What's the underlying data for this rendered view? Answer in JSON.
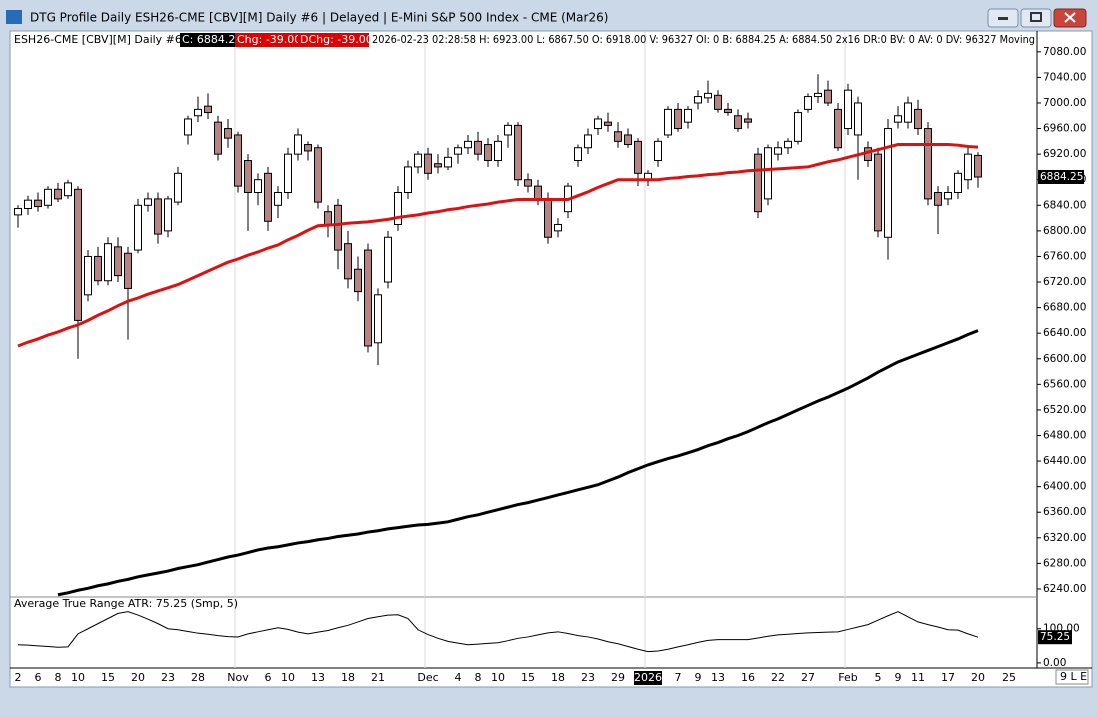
{
  "window": {
    "title": "DTG Profile Daily ESH26-CME [CBV][M]  Daily #6 | Delayed | E-Mini S&P 500 Index - CME (Mar26)",
    "corner": "9 L E"
  },
  "info": {
    "symbol": "ESH26-CME [CBV][M]  Daily #6",
    "close": "C: 6884.25",
    "chg": "Chg: -39.00",
    "dchg": "DChg: -39.00",
    "details": "2026-02-23 02:28:58 H: 6923.00 L: 6867.50 O: 6918.00 V: 96327 OI: 0 B: 6884.25 A: 6884.50 2x16 DR:0 BV: 0 AV: 0 DV: 96327 Moving"
  },
  "chart_data": [
    {
      "type": "candlestick",
      "up_color": "#ffffff",
      "down_color": "#b78484",
      "categories": [
        "2",
        null,
        "6",
        null,
        "8",
        null,
        "10",
        null,
        null,
        "15",
        null,
        null,
        "20",
        null,
        null,
        "23",
        null,
        null,
        "28",
        null,
        null,
        null,
        "Nov",
        null,
        null,
        "6",
        null,
        "10",
        null,
        null,
        "13",
        null,
        null,
        "18",
        null,
        null,
        "21",
        null,
        null,
        null,
        null,
        "Dec",
        null,
        null,
        "4",
        null,
        "8",
        null,
        "10",
        null,
        null,
        "15",
        null,
        null,
        "18",
        null,
        null,
        "23",
        null,
        null,
        "29",
        null,
        null,
        "2026",
        null,
        null,
        "7",
        null,
        "9",
        null,
        "13",
        null,
        null,
        "16",
        null,
        null,
        "22",
        null,
        null,
        "27",
        null,
        null,
        null,
        "Feb",
        null,
        null,
        "5",
        null,
        "9",
        null,
        "11",
        null,
        null,
        "17",
        null,
        null,
        "20"
      ],
      "extra_label": "25",
      "candles": [
        [
          6825,
          6840,
          6805,
          6835
        ],
        [
          6835,
          6855,
          6825,
          6848
        ],
        [
          6848,
          6860,
          6830,
          6838
        ],
        [
          6840,
          6870,
          6835,
          6865
        ],
        [
          6865,
          6875,
          6845,
          6850
        ],
        [
          6855,
          6880,
          6850,
          6875
        ],
        [
          6865,
          6870,
          6600,
          6660
        ],
        [
          6700,
          6770,
          6690,
          6760
        ],
        [
          6760,
          6775,
          6715,
          6722
        ],
        [
          6722,
          6790,
          6715,
          6780
        ],
        [
          6775,
          6790,
          6720,
          6730
        ],
        [
          6765,
          6775,
          6630,
          6710
        ],
        [
          6770,
          6850,
          6765,
          6840
        ],
        [
          6840,
          6860,
          6830,
          6850
        ],
        [
          6850,
          6860,
          6780,
          6795
        ],
        [
          6800,
          6855,
          6790,
          6850
        ],
        [
          6845,
          6900,
          6840,
          6890
        ],
        [
          6950,
          6980,
          6935,
          6975
        ],
        [
          6980,
          7010,
          6970,
          6990
        ],
        [
          6995,
          7015,
          6975,
          6985
        ],
        [
          6970,
          6980,
          6910,
          6920
        ],
        [
          6960,
          6975,
          6930,
          6945
        ],
        [
          6950,
          6955,
          6860,
          6870
        ],
        [
          6910,
          6920,
          6800,
          6860
        ],
        [
          6860,
          6890,
          6840,
          6880
        ],
        [
          6890,
          6900,
          6800,
          6815
        ],
        [
          6840,
          6870,
          6820,
          6860
        ],
        [
          6860,
          6930,
          6850,
          6920
        ],
        [
          6920,
          6960,
          6910,
          6950
        ],
        [
          6935,
          6940,
          6910,
          6925
        ],
        [
          6930,
          6935,
          6835,
          6845
        ],
        [
          6830,
          6840,
          6790,
          6810
        ],
        [
          6840,
          6850,
          6740,
          6770
        ],
        [
          6780,
          6800,
          6710,
          6725
        ],
        [
          6740,
          6760,
          6690,
          6705
        ],
        [
          6770,
          6780,
          6610,
          6620
        ],
        [
          6625,
          6710,
          6590,
          6700
        ],
        [
          6720,
          6800,
          6710,
          6790
        ],
        [
          6810,
          6870,
          6800,
          6860
        ],
        [
          6860,
          6910,
          6850,
          6900
        ],
        [
          6900,
          6925,
          6890,
          6920
        ],
        [
          6920,
          6930,
          6880,
          6890
        ],
        [
          6905,
          6920,
          6890,
          6900
        ],
        [
          6900,
          6930,
          6895,
          6915
        ],
        [
          6920,
          6935,
          6905,
          6930
        ],
        [
          6930,
          6950,
          6920,
          6940
        ],
        [
          6940,
          6955,
          6910,
          6920
        ],
        [
          6935,
          6945,
          6900,
          6910
        ],
        [
          6910,
          6950,
          6900,
          6940
        ],
        [
          6950,
          6970,
          6930,
          6965
        ],
        [
          6965,
          6970,
          6870,
          6880
        ],
        [
          6880,
          6890,
          6860,
          6870
        ],
        [
          6870,
          6880,
          6840,
          6850
        ],
        [
          6850,
          6860,
          6780,
          6790
        ],
        [
          6800,
          6820,
          6790,
          6810
        ],
        [
          6830,
          6875,
          6820,
          6870
        ],
        [
          6910,
          6935,
          6900,
          6930
        ],
        [
          6930,
          6960,
          6920,
          6950
        ],
        [
          6960,
          6980,
          6950,
          6975
        ],
        [
          6970,
          6985,
          6955,
          6965
        ],
        [
          6955,
          6970,
          6930,
          6940
        ],
        [
          6950,
          6960,
          6930,
          6935
        ],
        [
          6940,
          6945,
          6870,
          6890
        ],
        [
          6880,
          6895,
          6870,
          6890
        ],
        [
          6910,
          6945,
          6900,
          6940
        ],
        [
          6950,
          6995,
          6945,
          6990
        ],
        [
          6990,
          7000,
          6955,
          6960
        ],
        [
          6970,
          6995,
          6960,
          6990
        ],
        [
          7000,
          7020,
          6990,
          7010
        ],
        [
          7008,
          7035,
          7000,
          7015
        ],
        [
          7012,
          7020,
          6985,
          6990
        ],
        [
          6990,
          7000,
          6980,
          6985
        ],
        [
          6980,
          6990,
          6955,
          6960
        ],
        [
          6975,
          6985,
          6960,
          6970
        ],
        [
          6920,
          6930,
          6820,
          6830
        ],
        [
          6850,
          6935,
          6840,
          6930
        ],
        [
          6920,
          6940,
          6910,
          6930
        ],
        [
          6930,
          6945,
          6920,
          6940
        ],
        [
          6940,
          6990,
          6935,
          6985
        ],
        [
          6990,
          7015,
          6985,
          7010
        ],
        [
          7010,
          7045,
          7000,
          7015
        ],
        [
          7020,
          7035,
          6995,
          7000
        ],
        [
          6990,
          7000,
          6925,
          6930
        ],
        [
          6960,
          7030,
          6950,
          7020
        ],
        [
          6950,
          7010,
          6880,
          7000
        ],
        [
          6930,
          6940,
          6900,
          6910
        ],
        [
          6920,
          6930,
          6790,
          6800
        ],
        [
          6790,
          6975,
          6755,
          6960
        ],
        [
          6970,
          6995,
          6960,
          6980
        ],
        [
          6970,
          7010,
          6960,
          7000
        ],
        [
          6990,
          7005,
          6950,
          6960
        ],
        [
          6960,
          6970,
          6840,
          6850
        ],
        [
          6860,
          6870,
          6795,
          6840
        ],
        [
          6850,
          6870,
          6840,
          6860
        ],
        [
          6860,
          6895,
          6850,
          6890
        ],
        [
          6880,
          6930,
          6865,
          6920
        ],
        [
          6918,
          6923,
          6867.5,
          6884.25
        ]
      ],
      "series": [
        {
          "color": "#e01010",
          "values": [
            6620,
            6626,
            6631,
            6637,
            6642,
            6648,
            6653,
            6660,
            6668,
            6675,
            6683,
            6690,
            6695,
            6701,
            6706,
            6711,
            6716,
            6723,
            6730,
            6737,
            6744,
            6751,
            6756,
            6762,
            6767,
            6773,
            6778,
            6786,
            6793,
            6801,
            6808,
            6809,
            6810,
            6812,
            6813,
            6814,
            6816,
            6818,
            6821,
            6823,
            6825,
            6828,
            6830,
            6833,
            6835,
            6838,
            6840,
            6842,
            6845,
            6847,
            6849,
            6849,
            6849,
            6849,
            6849,
            6849,
            6855,
            6861,
            6868,
            6874,
            6880,
            6880,
            6880,
            6880,
            6880,
            6882,
            6883,
            6885,
            6886,
            6888,
            6889,
            6891,
            6892,
            6894,
            6895,
            6896,
            6897,
            6898,
            6899,
            6900,
            6904,
            6908,
            6911,
            6915,
            6919,
            6923,
            6927,
            6931,
            6935,
            6935,
            6935,
            6935,
            6935,
            6935,
            6934,
            6932,
            6931
          ]
        },
        {
          "color": "#000000",
          "values": [
            null,
            null,
            null,
            null,
            6231,
            6234,
            6238,
            6241,
            6245,
            6248,
            6252,
            6255,
            6259,
            6262,
            6265,
            6268,
            6272,
            6275,
            6278,
            6282,
            6286,
            6290,
            6293,
            6297,
            6301,
            6304,
            6306,
            6309,
            6312,
            6314,
            6317,
            6319,
            6322,
            6324,
            6326,
            6329,
            6331,
            6334,
            6336,
            6338,
            6340,
            6341,
            6343,
            6345,
            6349,
            6353,
            6356,
            6360,
            6364,
            6368,
            6372,
            6375,
            6379,
            6383,
            6387,
            6391,
            6395,
            6399,
            6403,
            6409,
            6415,
            6422,
            6428,
            6434,
            6439,
            6444,
            6448,
            6453,
            6458,
            6464,
            6469,
            6475,
            6480,
            6486,
            6493,
            6500,
            6506,
            6513,
            6520,
            6527,
            6534,
            6540,
            6547,
            6554,
            6562,
            6570,
            6579,
            6587,
            6595,
            6601,
            6607,
            6613,
            6619,
            6625,
            6631,
            6638,
            6644
          ]
        }
      ],
      "ylim": [
        6229,
        7111
      ],
      "yticks": [
        {
          "value": 7080,
          "label": "7080.00"
        },
        {
          "value": 7040,
          "label": "7040.00"
        },
        {
          "value": 7000,
          "label": "7000.00"
        },
        {
          "value": 6960,
          "label": "6960.00"
        },
        {
          "value": 6920,
          "label": "6920.00"
        },
        {
          "value": 6880,
          "label": "6880.00"
        },
        {
          "value": 6840,
          "label": "6840.00"
        },
        {
          "value": 6800,
          "label": "6800.00"
        },
        {
          "value": 6760,
          "label": "6760.00"
        },
        {
          "value": 6720,
          "label": "6720.00"
        },
        {
          "value": 6680,
          "label": "6680.00"
        },
        {
          "value": 6640,
          "label": "6640.00"
        },
        {
          "value": 6600,
          "label": "6600.00"
        },
        {
          "value": 6560,
          "label": "6560.00"
        },
        {
          "value": 6520,
          "label": "6520.00"
        },
        {
          "value": 6480,
          "label": "6480.00"
        },
        {
          "value": 6440,
          "label": "6440.00"
        },
        {
          "value": 6400,
          "label": "6400.00"
        },
        {
          "value": 6360,
          "label": "6360.00"
        },
        {
          "value": 6320,
          "label": "6320.00"
        },
        {
          "value": 6280,
          "label": "6280.00"
        },
        {
          "value": 6240,
          "label": "6240.00"
        }
      ]
    },
    {
      "type": "line",
      "title": "Average True Range  ATR: 75.25  (Smp, 5)",
      "color": "#000000",
      "values": [
        53,
        52,
        50,
        48,
        46,
        47,
        85,
        100,
        115,
        130,
        145,
        150,
        140,
        128,
        115,
        100,
        97,
        92,
        87,
        84,
        80,
        77,
        76,
        85,
        91,
        97,
        103,
        98,
        90,
        85,
        90,
        95,
        103,
        110,
        120,
        130,
        135,
        140,
        141,
        130,
        97,
        83,
        72,
        63,
        58,
        53,
        55,
        57,
        59,
        65,
        72,
        76,
        82,
        88,
        91,
        86,
        80,
        76,
        70,
        62,
        56,
        48,
        40,
        33,
        35,
        40,
        47,
        53,
        60,
        66,
        68,
        68,
        68,
        68,
        73,
        78,
        82,
        84,
        86,
        88,
        89,
        90,
        91,
        98,
        105,
        112,
        125,
        138,
        150,
        135,
        120,
        112,
        105,
        97,
        96,
        85,
        75.25
      ],
      "ylim": [
        -12,
        190
      ],
      "yticks": [
        {
          "value": 100,
          "label": "100.00"
        },
        {
          "value": 0,
          "label": "0.00"
        }
      ]
    }
  ]
}
